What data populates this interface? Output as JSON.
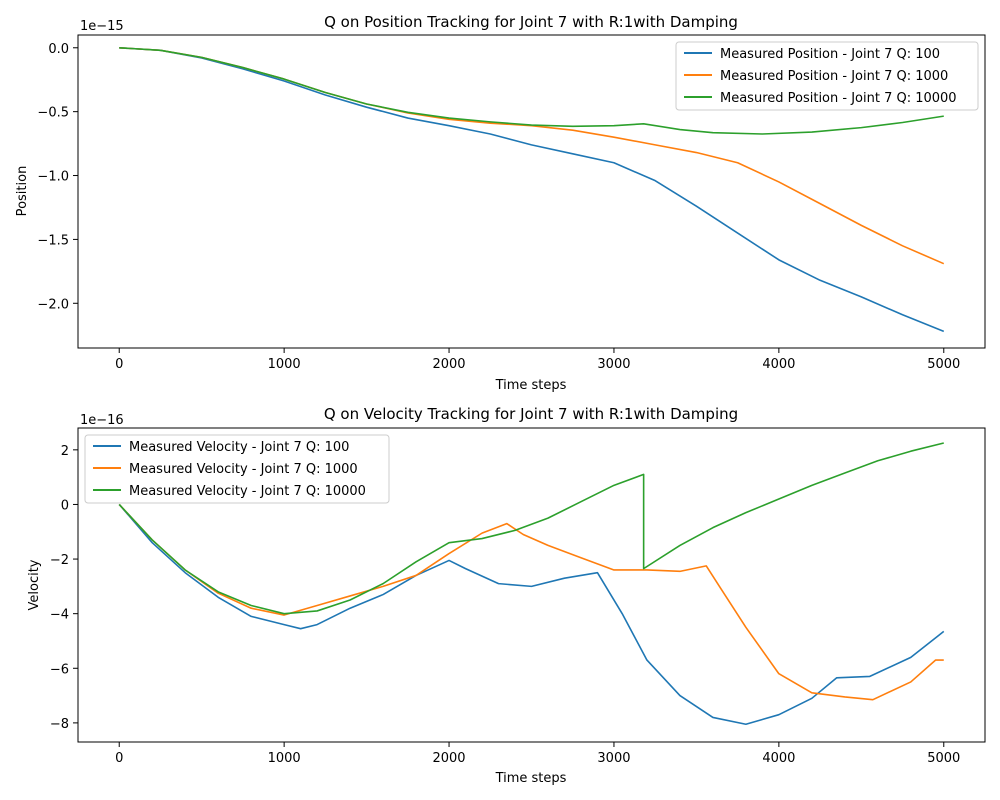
{
  "chart_data": [
    {
      "type": "line",
      "title": "Q on Position Tracking for Joint 7 with R:1with Damping",
      "xlabel": "Time steps",
      "ylabel": "Position",
      "offset_text": "1e−15",
      "xlim": [
        -250,
        5250
      ],
      "ylim": [
        -2.35,
        0.1
      ],
      "xticks": [
        0,
        1000,
        2000,
        3000,
        4000,
        5000
      ],
      "xtick_labels": [
        "0",
        "1000",
        "2000",
        "3000",
        "4000",
        "5000"
      ],
      "yticks": [
        0.0,
        -0.5,
        -1.0,
        -1.5,
        -2.0
      ],
      "ytick_labels": [
        "0.0",
        "−0.5",
        "−1.0",
        "−1.5",
        "−2.0"
      ],
      "legend_position": "top-right",
      "grid": false,
      "series": [
        {
          "name": "Measured Position - Joint 7 Q: 100",
          "color": "#1f77b4",
          "x": [
            0,
            250,
            500,
            750,
            1000,
            1250,
            1500,
            1750,
            2000,
            2250,
            2500,
            2750,
            3000,
            3250,
            3500,
            3750,
            4000,
            4250,
            4500,
            4750,
            5000
          ],
          "y": [
            0,
            -0.02,
            -0.08,
            -0.165,
            -0.26,
            -0.37,
            -0.465,
            -0.55,
            -0.61,
            -0.675,
            -0.76,
            -0.83,
            -0.9,
            -1.04,
            -1.24,
            -1.45,
            -1.66,
            -1.82,
            -1.95,
            -2.09,
            -2.22
          ]
        },
        {
          "name": "Measured Position - Joint 7 Q: 1000",
          "color": "#ff7f0e",
          "x": [
            0,
            250,
            500,
            750,
            1000,
            1250,
            1500,
            1750,
            2000,
            2250,
            2500,
            2750,
            3000,
            3250,
            3500,
            3750,
            4000,
            4250,
            4500,
            4750,
            5000
          ],
          "y": [
            0,
            -0.02,
            -0.075,
            -0.155,
            -0.245,
            -0.35,
            -0.44,
            -0.51,
            -0.56,
            -0.59,
            -0.61,
            -0.645,
            -0.7,
            -0.76,
            -0.82,
            -0.9,
            -1.05,
            -1.22,
            -1.39,
            -1.55,
            -1.69
          ]
        },
        {
          "name": "Measured Position - Joint 7 Q: 10000",
          "color": "#2ca02c",
          "x": [
            0,
            250,
            500,
            750,
            1000,
            1250,
            1500,
            1750,
            2000,
            2250,
            2500,
            2750,
            3000,
            3180,
            3400,
            3600,
            3900,
            4200,
            4500,
            4750,
            5000
          ],
          "y": [
            0,
            -0.02,
            -0.075,
            -0.155,
            -0.245,
            -0.35,
            -0.44,
            -0.505,
            -0.55,
            -0.58,
            -0.605,
            -0.615,
            -0.61,
            -0.595,
            -0.64,
            -0.665,
            -0.675,
            -0.66,
            -0.625,
            -0.585,
            -0.535
          ]
        }
      ]
    },
    {
      "type": "line",
      "title": "Q on Velocity Tracking for Joint 7 with R:1with Damping",
      "xlabel": "Time steps",
      "ylabel": "Velocity",
      "offset_text": "1e−16",
      "xlim": [
        -250,
        5250
      ],
      "ylim": [
        -8.7,
        2.8
      ],
      "xticks": [
        0,
        1000,
        2000,
        3000,
        4000,
        5000
      ],
      "xtick_labels": [
        "0",
        "1000",
        "2000",
        "3000",
        "4000",
        "5000"
      ],
      "yticks": [
        2,
        0,
        -2,
        -4,
        -6,
        -8
      ],
      "ytick_labels": [
        "2",
        "0",
        "−2",
        "−4",
        "−6",
        "−8"
      ],
      "legend_position": "top-left",
      "grid": false,
      "series": [
        {
          "name": "Measured Velocity - Joint 7 Q: 100",
          "color": "#1f77b4",
          "x": [
            0,
            200,
            400,
            600,
            800,
            1000,
            1100,
            1200,
            1400,
            1600,
            1800,
            2000,
            2100,
            2300,
            2500,
            2700,
            2900,
            3050,
            3200,
            3400,
            3600,
            3800,
            4000,
            4200,
            4350,
            4550,
            4800,
            5000
          ],
          "y": [
            0,
            -1.4,
            -2.5,
            -3.4,
            -4.1,
            -4.4,
            -4.55,
            -4.4,
            -3.8,
            -3.3,
            -2.6,
            -2.05,
            -2.35,
            -2.9,
            -3.0,
            -2.7,
            -2.5,
            -4.0,
            -5.7,
            -7.0,
            -7.8,
            -8.05,
            -7.7,
            -7.1,
            -6.35,
            -6.3,
            -5.6,
            -4.65
          ]
        },
        {
          "name": "Measured Velocity - Joint 7 Q: 1000",
          "color": "#ff7f0e",
          "x": [
            0,
            200,
            400,
            600,
            800,
            1000,
            1200,
            1400,
            1600,
            1800,
            2000,
            2200,
            2350,
            2450,
            2600,
            2800,
            3000,
            3200,
            3400,
            3560,
            3650,
            3800,
            4000,
            4200,
            4400,
            4570,
            4800,
            4950,
            5000
          ],
          "y": [
            0,
            -1.3,
            -2.4,
            -3.25,
            -3.8,
            -4.05,
            -3.7,
            -3.35,
            -3.0,
            -2.6,
            -1.8,
            -1.05,
            -0.7,
            -1.1,
            -1.5,
            -1.95,
            -2.4,
            -2.4,
            -2.45,
            -2.25,
            -3.1,
            -4.5,
            -6.2,
            -6.9,
            -7.05,
            -7.15,
            -6.5,
            -5.7,
            -5.7
          ]
        },
        {
          "name": "Measured Velocity - Joint 7 Q: 10000",
          "color": "#2ca02c",
          "x": [
            0,
            200,
            400,
            600,
            800,
            1000,
            1200,
            1400,
            1600,
            1800,
            2000,
            2200,
            2400,
            2600,
            2800,
            3000,
            3180,
            3180,
            3400,
            3600,
            3800,
            4000,
            4200,
            4400,
            4600,
            4800,
            5000
          ],
          "y": [
            0,
            -1.3,
            -2.4,
            -3.2,
            -3.7,
            -4.0,
            -3.9,
            -3.5,
            -2.9,
            -2.1,
            -1.4,
            -1.25,
            -0.95,
            -0.5,
            0.1,
            0.7,
            1.1,
            -2.35,
            -1.5,
            -0.85,
            -0.3,
            0.2,
            0.7,
            1.15,
            1.6,
            1.95,
            2.25
          ]
        }
      ]
    }
  ]
}
